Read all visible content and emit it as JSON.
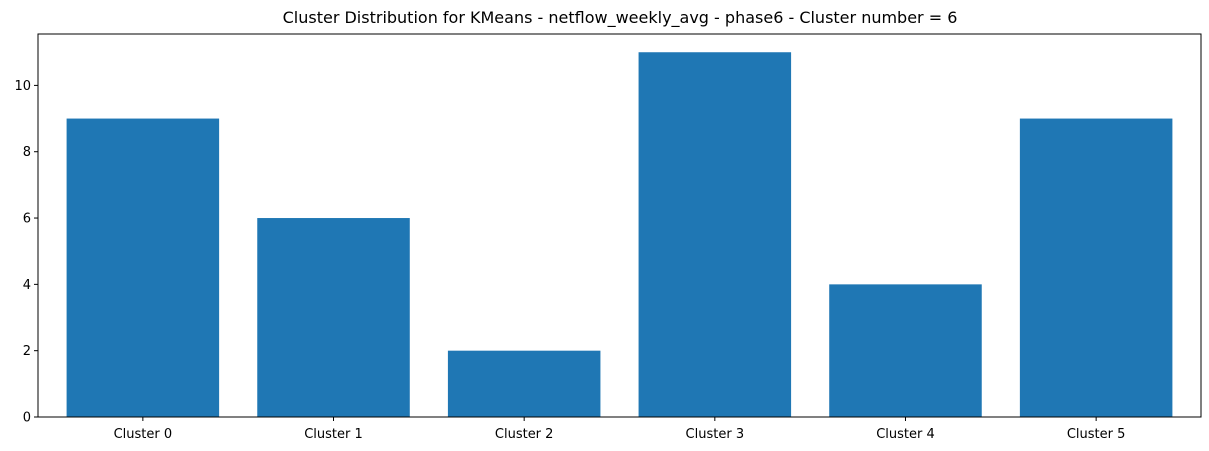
{
  "chart_data": {
    "type": "bar",
    "title": "Cluster Distribution for KMeans - netflow_weekly_avg - phase6 - Cluster number = 6",
    "categories": [
      "Cluster 0",
      "Cluster 1",
      "Cluster 2",
      "Cluster 3",
      "Cluster 4",
      "Cluster 5"
    ],
    "values": [
      9,
      6,
      2,
      11,
      4,
      9
    ],
    "xlabel": "",
    "ylabel": "",
    "ylim": [
      0,
      11.55
    ],
    "yticks": [
      0,
      2,
      4,
      6,
      8,
      10
    ],
    "grid": false,
    "bar_color": "#1f77b4"
  }
}
